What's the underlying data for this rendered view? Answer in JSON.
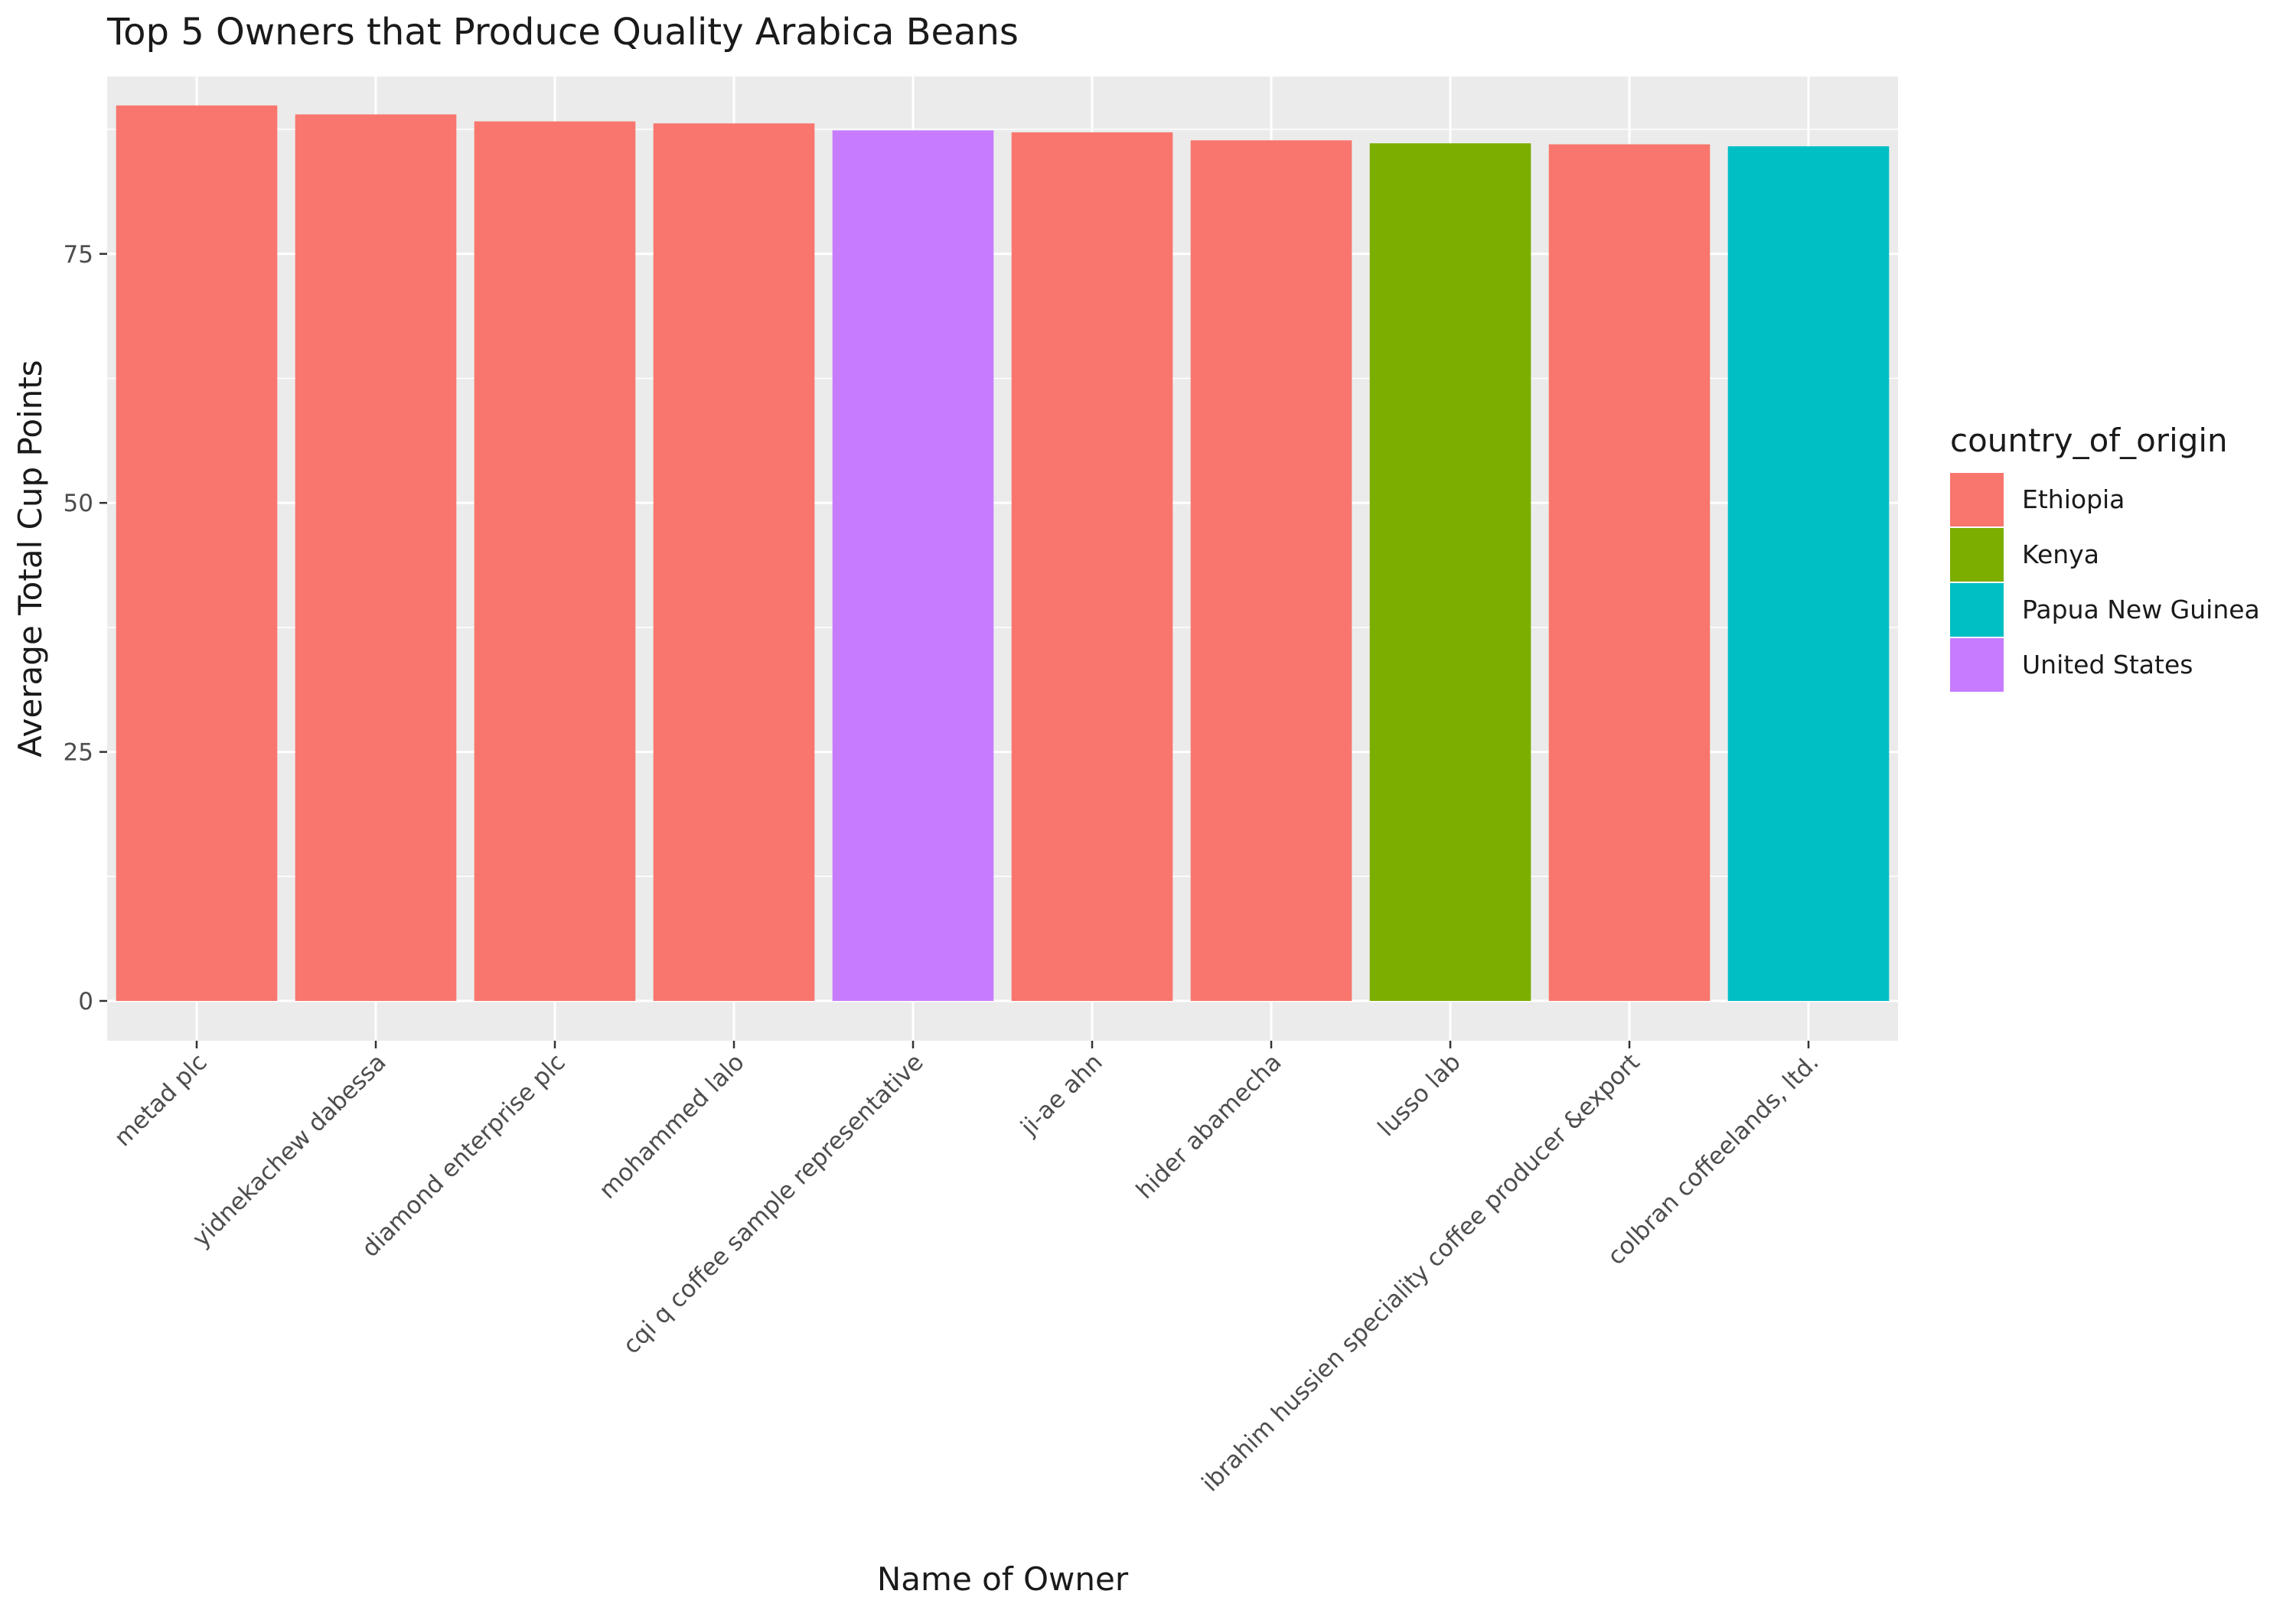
{
  "chart_data": {
    "type": "bar",
    "title": "Top 5 Owners that Produce Quality Arabica Beans",
    "xlabel": "Name of Owner",
    "ylabel": "Average Total Cup Points",
    "ylim": [
      0,
      90.5
    ],
    "yticks": [
      0,
      25,
      50,
      75
    ],
    "grid": true,
    "legend": {
      "title": "country_of_origin",
      "position": "right",
      "entries": [
        {
          "label": "Ethiopia",
          "color": "#F8766D"
        },
        {
          "label": "Kenya",
          "color": "#7CAE00"
        },
        {
          "label": "Papua New Guinea",
          "color": "#00BFC4"
        },
        {
          "label": "United States",
          "color": "#C77CFF"
        }
      ]
    },
    "categories": [
      "metad plc",
      "yidnekachew dabessa",
      "diamond enterprise plc",
      "mohammed lalo",
      "cqi q coffee sample representative",
      "ji-ae ahn",
      "hider abamecha",
      "lusso lab",
      "ibrahim hussien speciality coffee producer &export",
      "colbran coffeelands, ltd."
    ],
    "values": [
      89.9,
      89.0,
      88.3,
      88.1,
      87.4,
      87.2,
      86.4,
      86.1,
      86.0,
      85.8
    ],
    "countries": [
      "Ethiopia",
      "Ethiopia",
      "Ethiopia",
      "Ethiopia",
      "United States",
      "Ethiopia",
      "Ethiopia",
      "Kenya",
      "Ethiopia",
      "Papua New Guinea"
    ]
  }
}
